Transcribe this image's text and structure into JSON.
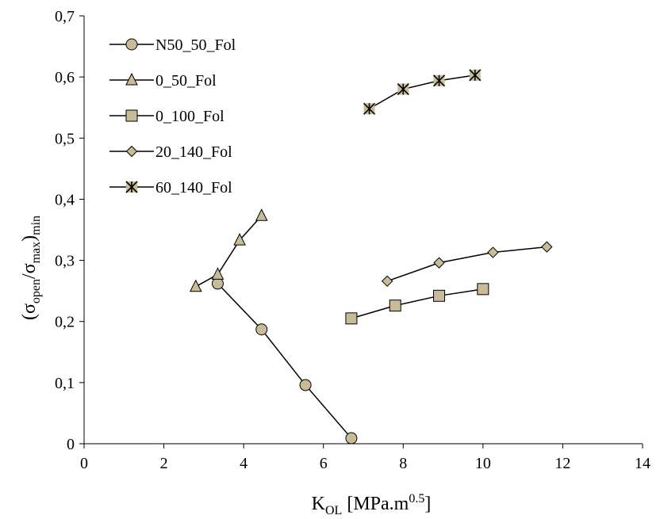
{
  "chart_data": {
    "type": "scatter",
    "title": "",
    "xlabel": {
      "main": "K",
      "sub": "OL",
      "rest": " [MPa.m",
      "sup": "0.5",
      "end": "]"
    },
    "ylabel": {
      "open": "(σ",
      "sub1": "open",
      "slash": "/σ",
      "sub2": "max",
      "close": ")",
      "sub3": "min"
    },
    "xlim": [
      0,
      14
    ],
    "ylim": [
      0,
      0.7
    ],
    "x_ticks": [
      {
        "v": 0,
        "label": "0"
      },
      {
        "v": 2,
        "label": "2"
      },
      {
        "v": 4,
        "label": "4"
      },
      {
        "v": 6,
        "label": "6"
      },
      {
        "v": 8,
        "label": "8"
      },
      {
        "v": 10,
        "label": "10"
      },
      {
        "v": 12,
        "label": "12"
      },
      {
        "v": 14,
        "label": "14"
      }
    ],
    "y_ticks": [
      {
        "v": 0,
        "label": "0"
      },
      {
        "v": 0.1,
        "label": "0,1"
      },
      {
        "v": 0.2,
        "label": "0,2"
      },
      {
        "v": 0.3,
        "label": "0,3"
      },
      {
        "v": 0.4,
        "label": "0,4"
      },
      {
        "v": 0.5,
        "label": "0,5"
      },
      {
        "v": 0.6,
        "label": "0,6"
      },
      {
        "v": 0.7,
        "label": "0,7"
      }
    ],
    "grid": false,
    "legend_position": "top-left",
    "marker_fill": "#c8bc98",
    "line_color": "#000000",
    "series": [
      {
        "name": "N50_50_Fol",
        "marker": "circle",
        "x": [
          3.35,
          4.45,
          5.55,
          6.7
        ],
        "y": [
          0.262,
          0.187,
          0.096,
          0.009
        ]
      },
      {
        "name": "0_50_Fol",
        "marker": "triangle",
        "x": [
          2.8,
          3.35,
          3.9,
          4.45
        ],
        "y": [
          0.257,
          0.277,
          0.333,
          0.373
        ]
      },
      {
        "name": "0_100_Fol",
        "marker": "square",
        "x": [
          6.7,
          7.8,
          8.9,
          10.0
        ],
        "y": [
          0.205,
          0.226,
          0.242,
          0.253
        ]
      },
      {
        "name": "20_140_Fol",
        "marker": "diamond",
        "x": [
          7.6,
          8.9,
          10.25,
          11.6
        ],
        "y": [
          0.266,
          0.296,
          0.313,
          0.322
        ]
      },
      {
        "name": "60_140_Fol",
        "marker": "asterisk",
        "x": [
          7.15,
          8.0,
          8.9,
          9.8
        ],
        "y": [
          0.548,
          0.58,
          0.594,
          0.603
        ]
      }
    ]
  }
}
